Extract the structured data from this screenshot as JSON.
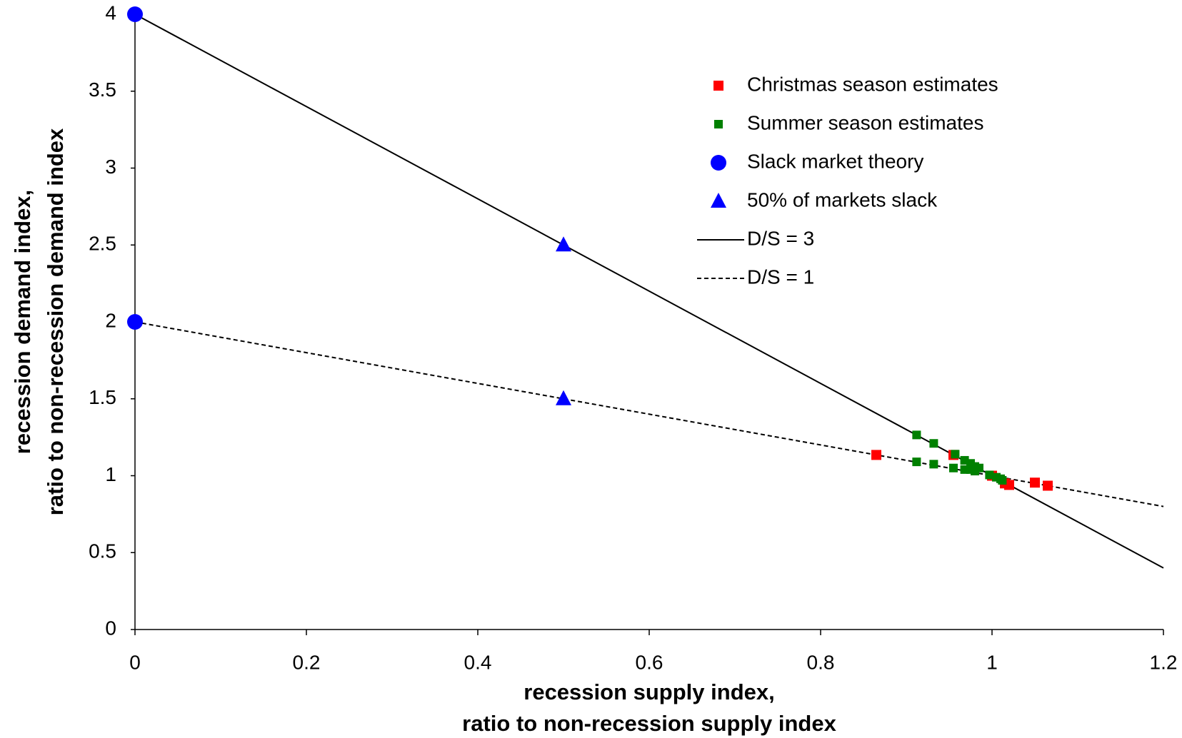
{
  "chart_data": {
    "type": "scatter",
    "xlabel": [
      "recession supply index,",
      "ratio to non-recession supply index"
    ],
    "ylabel": [
      "recession demand index,",
      "ratio to non-recession demand index"
    ],
    "xlim": [
      0,
      1.2
    ],
    "xticks": [
      0,
      0.2,
      0.4,
      0.6,
      0.8,
      1,
      1.2
    ],
    "ylim": [
      0,
      4
    ],
    "yticks": [
      0,
      0.5,
      1,
      1.5,
      2,
      2.5,
      3,
      3.5,
      4
    ],
    "grid": false,
    "legend": "upper right",
    "series": [
      {
        "name": "D/S = 3",
        "color": "#000000",
        "marker": "none",
        "line": "solid",
        "x": [
          0,
          1.2
        ],
        "values": [
          4,
          0.4
        ]
      },
      {
        "name": "D/S = 1",
        "color": "#000000",
        "marker": "none",
        "line": "dashed",
        "x": [
          0,
          1.2
        ],
        "values": [
          2,
          0.8
        ]
      },
      {
        "name": "Christmas season estimates",
        "color": "#ff0000",
        "marker": "square",
        "line": "none",
        "x": [
          0.865,
          0.955,
          1.0,
          1.015,
          1.02,
          1.05,
          1.065
        ],
        "values": [
          1.135,
          1.135,
          1.0,
          0.95,
          0.94,
          0.955,
          0.935
        ]
      },
      {
        "name": "Summer season estimates",
        "color": "#008000",
        "marker": "square-small",
        "line": "none",
        "x": [
          0.912,
          0.912,
          0.932,
          0.932,
          0.955,
          0.957,
          0.968,
          0.968,
          0.975,
          0.975,
          0.98,
          0.98,
          0.985,
          0.997,
          1.005,
          1.01,
          1.012
        ],
        "values": [
          1.265,
          1.09,
          1.21,
          1.075,
          1.05,
          1.14,
          1.1,
          1.04,
          1.08,
          1.04,
          1.06,
          1.03,
          1.05,
          1.005,
          0.99,
          0.98,
          0.97
        ]
      },
      {
        "name": "Slack market theory",
        "color": "#0000ff",
        "marker": "circle",
        "line": "none",
        "x": [
          0,
          0
        ],
        "values": [
          4,
          2
        ]
      },
      {
        "name": "50% of markets slack",
        "color": "#0000ff",
        "marker": "triangle",
        "line": "none",
        "x": [
          0.5,
          0.5
        ],
        "values": [
          2.5,
          1.5
        ]
      }
    ],
    "legend_order": [
      2,
      3,
      4,
      5,
      0,
      1
    ]
  }
}
